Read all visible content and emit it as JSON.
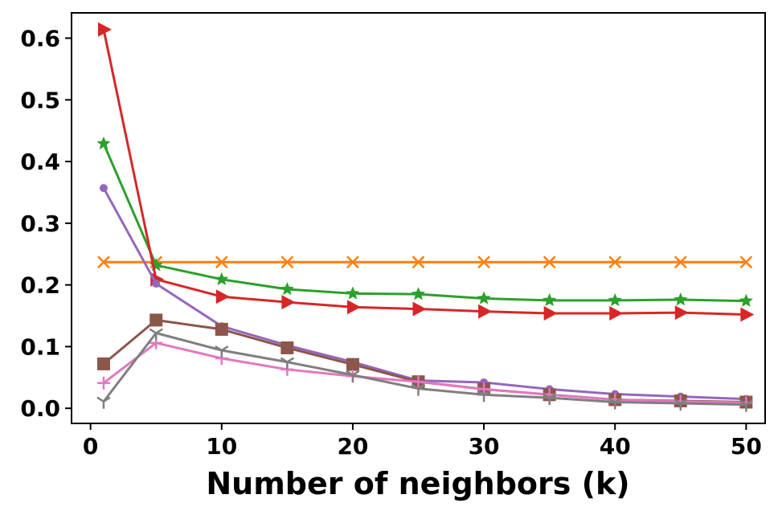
{
  "chart_data": {
    "type": "line",
    "title": "",
    "xlabel": "Number of neighbors (k)",
    "ylabel": "",
    "xlim": [
      -1.45,
      51.45
    ],
    "ylim": [
      -0.0245,
      0.641
    ],
    "xticks": [
      0,
      10,
      20,
      30,
      40,
      50
    ],
    "yticks": [
      0.0,
      0.1,
      0.2,
      0.3,
      0.4,
      0.5,
      0.6
    ],
    "xtick_labels": [
      "0",
      "10",
      "20",
      "30",
      "40",
      "50"
    ],
    "ytick_labels": [
      "0.0",
      "0.1",
      "0.2",
      "0.3",
      "0.4",
      "0.5",
      "0.6"
    ],
    "grid": false,
    "legend": "none",
    "x": [
      1,
      5,
      10,
      15,
      20,
      25,
      30,
      35,
      40,
      45,
      50
    ],
    "series": [
      {
        "name": "orange-x",
        "color": "#ff7f0e",
        "marker": "x",
        "values": [
          0.237,
          0.237,
          0.237,
          0.237,
          0.237,
          0.237,
          0.237,
          0.237,
          0.237,
          0.237,
          0.237
        ]
      },
      {
        "name": "green-star",
        "color": "#2ca02c",
        "marker": "star",
        "values": [
          0.429,
          0.232,
          0.209,
          0.193,
          0.186,
          0.185,
          0.178,
          0.175,
          0.175,
          0.176,
          0.174
        ]
      },
      {
        "name": "red-triangle",
        "color": "#d62728",
        "marker": "triangle-right",
        "values": [
          0.614,
          0.209,
          0.181,
          0.172,
          0.164,
          0.161,
          0.157,
          0.154,
          0.154,
          0.155,
          0.152
        ]
      },
      {
        "name": "purple-circle",
        "color": "#9467bd",
        "marker": "circle",
        "values": [
          0.357,
          0.202,
          0.133,
          0.102,
          0.075,
          0.045,
          0.042,
          0.031,
          0.023,
          0.019,
          0.015
        ]
      },
      {
        "name": "brown-square",
        "color": "#8c564b",
        "marker": "square",
        "values": [
          0.072,
          0.143,
          0.128,
          0.098,
          0.071,
          0.043,
          0.031,
          0.022,
          0.014,
          0.012,
          0.01
        ]
      },
      {
        "name": "pink-plus",
        "color": "#e377c2",
        "marker": "plus",
        "values": [
          0.041,
          0.106,
          0.081,
          0.063,
          0.052,
          0.043,
          0.031,
          0.022,
          0.014,
          0.011,
          0.009
        ]
      },
      {
        "name": "gray-tri-down",
        "color": "#7f7f7f",
        "marker": "tri-down",
        "values": [
          0.011,
          0.122,
          0.094,
          0.075,
          0.054,
          0.032,
          0.022,
          0.017,
          0.01,
          0.008,
          0.006
        ]
      }
    ]
  }
}
